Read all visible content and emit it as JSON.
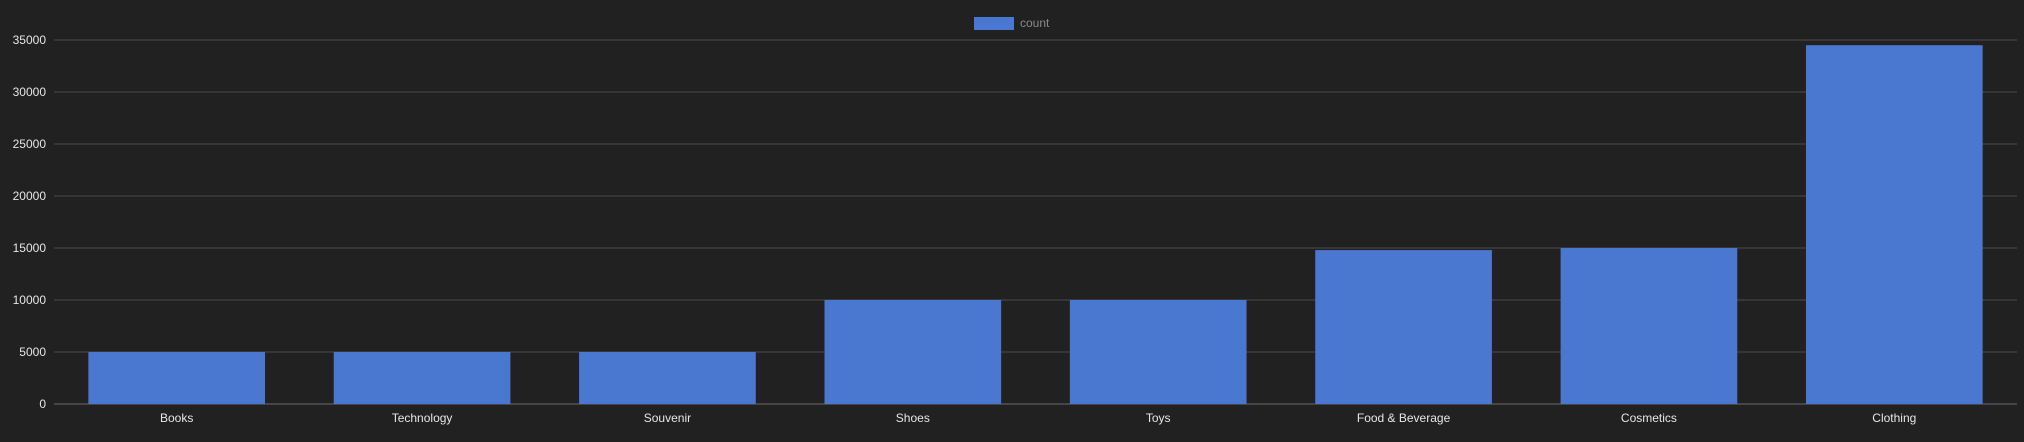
{
  "chart_data": {
    "type": "bar",
    "categories": [
      "Books",
      "Technology",
      "Souvenir",
      "Shoes",
      "Toys",
      "Food & Beverage",
      "Cosmetics",
      "Clothing"
    ],
    "series": [
      {
        "name": "count",
        "values": [
          5000,
          5000,
          5000,
          10000,
          10000,
          14800,
          15000,
          34500
        ],
        "color": "#4a78d0"
      }
    ],
    "ylim": [
      0,
      35000
    ],
    "yticks": [
      "0",
      "5000",
      "10000",
      "15000",
      "20000",
      "25000",
      "30000",
      "35000"
    ],
    "grid": true,
    "legend_position": "top-center",
    "colors": {
      "background": "#212121",
      "bar": "#4a78d0",
      "grid": "#4a4a4a",
      "text": "#e6e6e6"
    }
  }
}
